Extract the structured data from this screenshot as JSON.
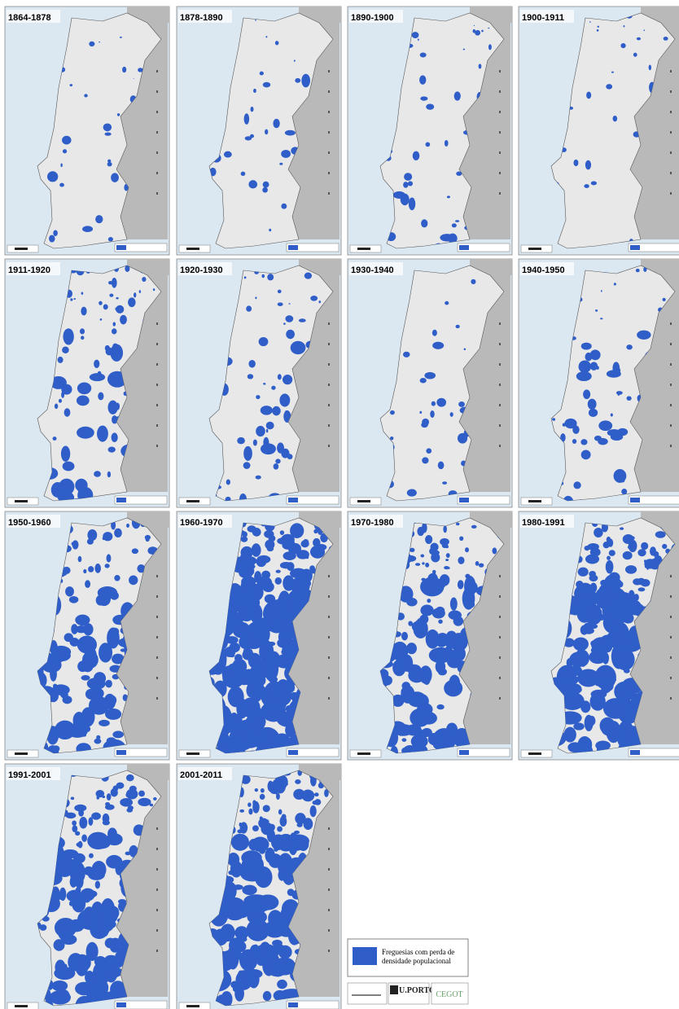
{
  "panels": [
    {
      "label": "1864-1878"
    },
    {
      "label": "1878-1890"
    },
    {
      "label": "1890-1900"
    },
    {
      "label": "1900-1911"
    },
    {
      "label": "1911-1920"
    },
    {
      "label": "1920-1930"
    },
    {
      "label": "1930-1940"
    },
    {
      "label": "1940-1950"
    },
    {
      "label": "1950-1960"
    },
    {
      "label": "1960-1970"
    },
    {
      "label": "1970-1980"
    },
    {
      "label": "1980-1991"
    },
    {
      "label": "1991-2001"
    },
    {
      "label": "2001-2011"
    }
  ],
  "legend": {
    "lines": [
      "Freguesias com perda de",
      "densidade populacional"
    ]
  },
  "logos": [
    "U.PORTO",
    "CEGOT"
  ]
}
